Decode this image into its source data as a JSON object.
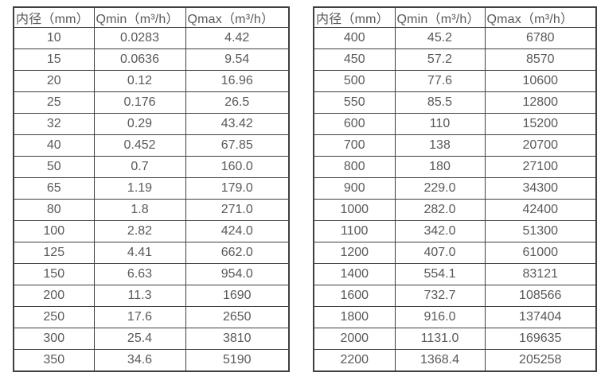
{
  "colors": {
    "background": "#ffffff",
    "table_border": "#3f3f3f",
    "text": "#595959"
  },
  "tables": [
    {
      "name": "flow-table-small-diameters",
      "headers": [
        "内径（mm）",
        "Qmin（m³/h）",
        "Qmax（m³/h）"
      ],
      "rows": [
        [
          "10",
          "0.0283",
          "4.42"
        ],
        [
          "15",
          "0.0636",
          "9.54"
        ],
        [
          "20",
          "0.12",
          "16.96"
        ],
        [
          "25",
          "0.176",
          "26.5"
        ],
        [
          "32",
          "0.29",
          "43.42"
        ],
        [
          "40",
          "0.452",
          "67.85"
        ],
        [
          "50",
          "0.7",
          "160.0"
        ],
        [
          "65",
          "1.19",
          "179.0"
        ],
        [
          "80",
          "1.8",
          "271.0"
        ],
        [
          "100",
          "2.82",
          "424.0"
        ],
        [
          "125",
          "4.41",
          "662.0"
        ],
        [
          "150",
          "6.63",
          "954.0"
        ],
        [
          "200",
          "11.3",
          "1690"
        ],
        [
          "250",
          "17.6",
          "2650"
        ],
        [
          "300",
          "25.4",
          "3810"
        ],
        [
          "350",
          "34.6",
          "5190"
        ]
      ]
    },
    {
      "name": "flow-table-large-diameters",
      "headers": [
        "内径（mm）",
        "Qmin（m³/h）",
        "Qmax（m³/h）"
      ],
      "rows": [
        [
          "400",
          "45.2",
          "6780"
        ],
        [
          "450",
          "57.2",
          "8570"
        ],
        [
          "500",
          "77.6",
          "10600"
        ],
        [
          "550",
          "85.5",
          "12800"
        ],
        [
          "600",
          "110",
          "15200"
        ],
        [
          "700",
          "138",
          "20700"
        ],
        [
          "800",
          "180",
          "27100"
        ],
        [
          "900",
          "229.0",
          "34300"
        ],
        [
          "1000",
          "282.0",
          "42400"
        ],
        [
          "1100",
          "342.0",
          "51300"
        ],
        [
          "1200",
          "407.0",
          "61000"
        ],
        [
          "1400",
          "554.1",
          "83121"
        ],
        [
          "1600",
          "732.7",
          "108566"
        ],
        [
          "1800",
          "916.0",
          "137404"
        ],
        [
          "2000",
          "1131.0",
          "169635"
        ],
        [
          "2200",
          "1368.4",
          "205258"
        ]
      ]
    }
  ]
}
